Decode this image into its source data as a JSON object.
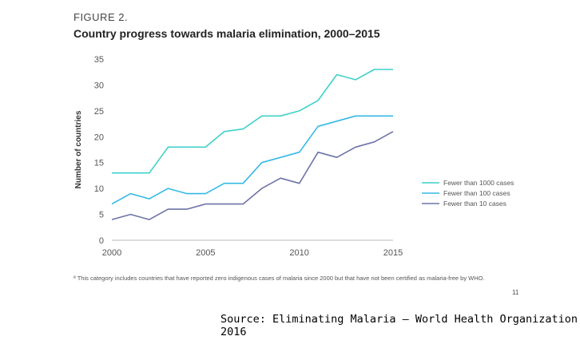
{
  "figure_label": "FIGURE 2.",
  "page_number": "11",
  "footnote": "ª This category includes countries that have reported zero indigenous cases of malaria since 2000 but that have not been certified as malaria-free by WHO.",
  "source": "Source:  Eliminating Malaria – World Health Organization 2016",
  "chart_data": {
    "type": "line",
    "title": "Country progress towards malaria elimination, 2000–2015",
    "xlabel": "",
    "ylabel": "Number of countries",
    "x": [
      2000,
      2001,
      2002,
      2003,
      2004,
      2005,
      2006,
      2007,
      2008,
      2009,
      2010,
      2011,
      2012,
      2013,
      2014,
      2015
    ],
    "xticks": [
      2000,
      2005,
      2010,
      2015
    ],
    "yticks": [
      0,
      5,
      10,
      15,
      20,
      25,
      30,
      35
    ],
    "ylim": [
      0,
      35
    ],
    "xlim": [
      2000,
      2015
    ],
    "grid": false,
    "legend_position": "right",
    "series": [
      {
        "name": "Fewer than 1000 cases",
        "color": "#3fd1c8",
        "values": [
          13,
          13,
          13,
          18,
          18,
          18,
          21,
          21.5,
          24,
          24,
          25,
          27,
          32,
          31,
          33,
          33
        ]
      },
      {
        "name": "Fewer than 100 cases",
        "color": "#35b9e6",
        "values": [
          7,
          9,
          8,
          10,
          9,
          9,
          11,
          11,
          15,
          16,
          17,
          22,
          23,
          24,
          24,
          24
        ]
      },
      {
        "name": "Fewer than 10 cases",
        "color": "#6e73a8",
        "values": [
          4,
          5,
          4,
          6,
          6,
          7,
          7,
          7,
          10,
          12,
          11,
          17,
          16,
          18,
          19,
          21
        ]
      }
    ]
  }
}
